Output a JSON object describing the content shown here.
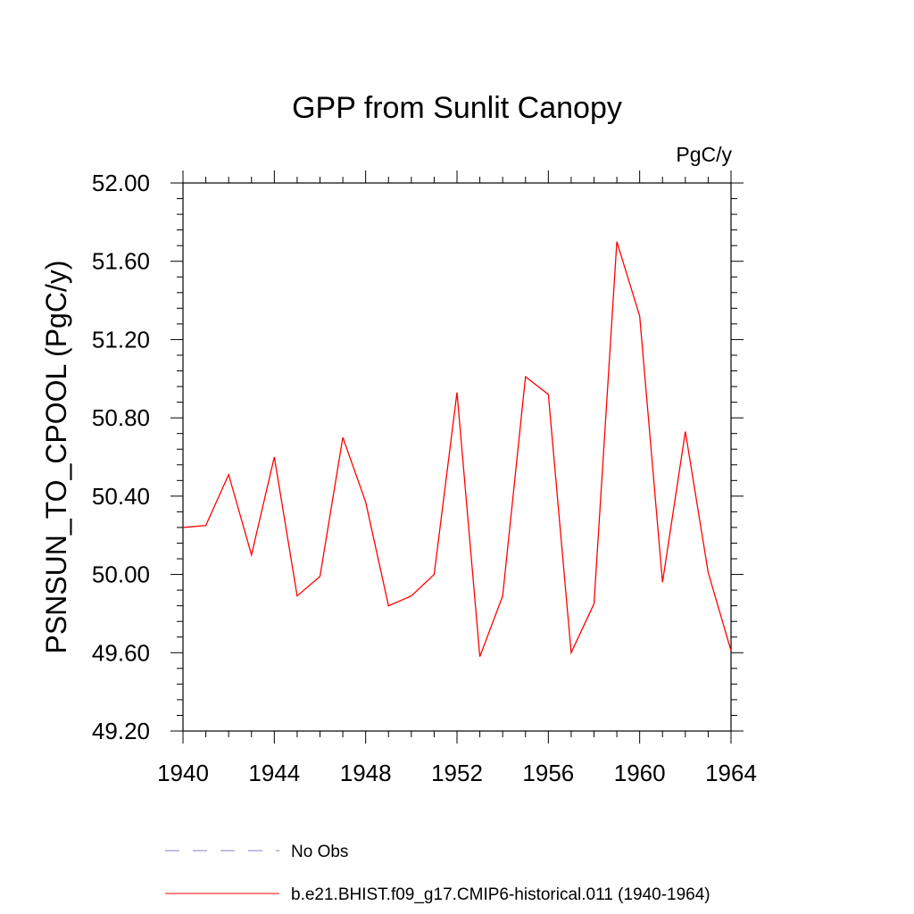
{
  "chart_data": {
    "type": "line",
    "title": "GPP from Sunlit Canopy",
    "units_label": "PgC/y",
    "ylabel": "PSNSUN_TO_CPOOL  (PgC/y)",
    "xlabel": "",
    "xlim": [
      1940,
      1964
    ],
    "ylim": [
      49.2,
      52.0
    ],
    "x_ticks": [
      "1940",
      "1944",
      "1948",
      "1952",
      "1956",
      "1960",
      "1964"
    ],
    "y_ticks": [
      "49.20",
      "49.60",
      "50.00",
      "50.40",
      "50.80",
      "51.20",
      "51.60",
      "52.00"
    ],
    "x": [
      1940,
      1941,
      1942,
      1943,
      1944,
      1945,
      1946,
      1947,
      1948,
      1949,
      1950,
      1951,
      1952,
      1953,
      1954,
      1955,
      1956,
      1957,
      1958,
      1959,
      1960,
      1961,
      1962,
      1963,
      1964
    ],
    "series": [
      {
        "name": "b.e21.BHIST.f09_g17.CMIP6-historical.011 (1940-1964)",
        "color": "#ff0000",
        "dash": "solid",
        "values": [
          50.24,
          50.25,
          50.51,
          50.1,
          50.6,
          49.89,
          49.99,
          50.7,
          50.37,
          49.84,
          49.89,
          50.0,
          50.93,
          49.58,
          49.89,
          51.01,
          50.92,
          49.6,
          49.85,
          51.7,
          51.32,
          49.96,
          50.73,
          50.01,
          49.61
        ]
      }
    ],
    "legend": {
      "position": "bottom",
      "entries": [
        {
          "label": "No Obs",
          "color": "#8080c0",
          "dash": "dashed"
        },
        {
          "label": "b.e21.BHIST.f09_g17.CMIP6-historical.011 (1940-1964)",
          "color": "#ff0000",
          "dash": "solid"
        }
      ]
    },
    "grid": false
  }
}
